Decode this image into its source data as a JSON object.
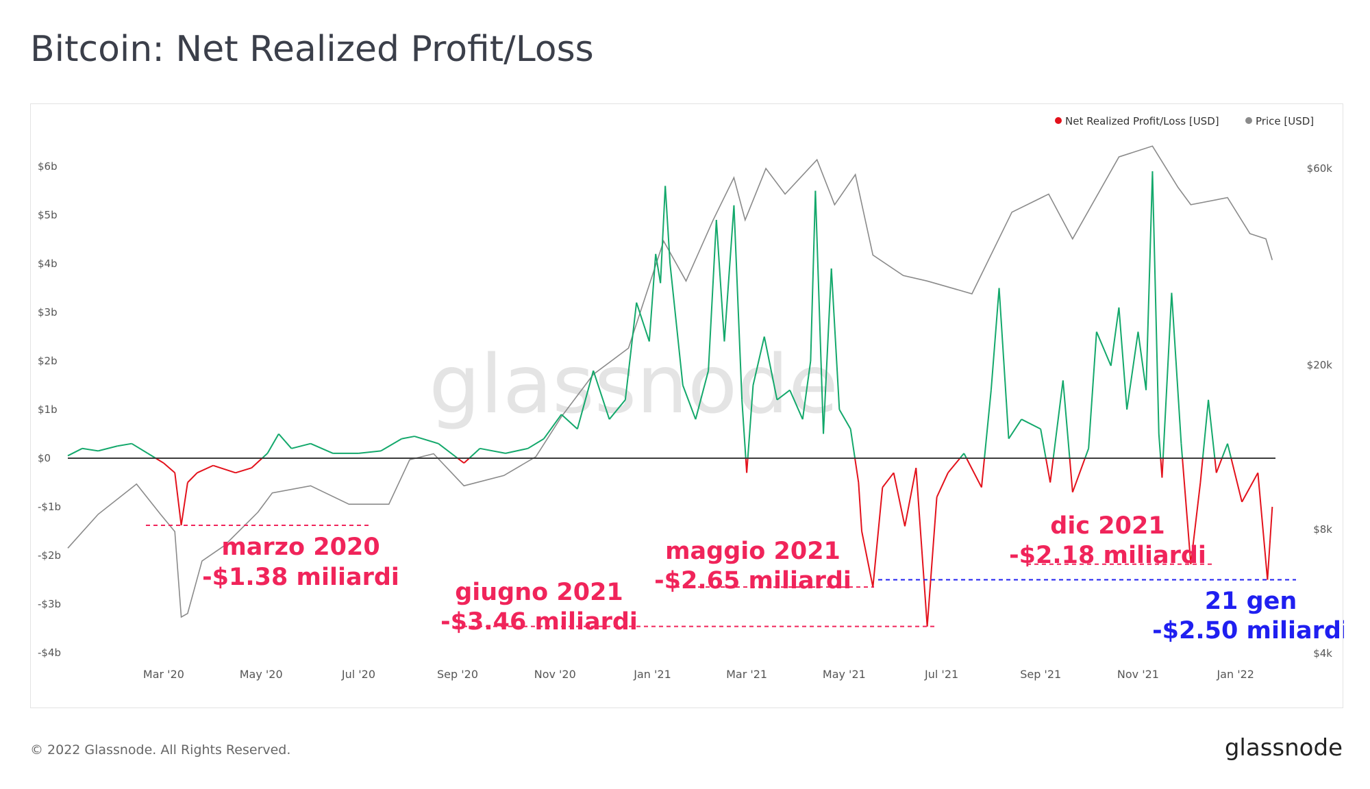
{
  "title": "Bitcoin: Net Realized Profit/Loss",
  "footer": {
    "copyright": "© 2022 Glassnode. All Rights Reserved.",
    "brand": "glassnode"
  },
  "watermark": "glassnode",
  "colors": {
    "profit": "#13a86b",
    "loss": "#e3111b",
    "price": "#8a8a8a",
    "callout_red": "#f0245a",
    "callout_blue": "#1f1ff0",
    "zero_line": "#3a3a3a"
  },
  "chart_data": {
    "type": "line",
    "title": "Bitcoin: Net Realized Profit/Loss",
    "legend": {
      "placement": "top-right",
      "entries": [
        {
          "name": "Net Realized Profit/Loss [USD]",
          "color": "#e3111b"
        },
        {
          "name": "Price [USD]",
          "color": "#8a8a8a"
        }
      ]
    },
    "x_range": [
      "2020-01-01",
      "2022-01-26"
    ],
    "x_ticks": [
      {
        "label": "Mar '20",
        "date": "2020-03-01"
      },
      {
        "label": "May '20",
        "date": "2020-05-01"
      },
      {
        "label": "Jul '20",
        "date": "2020-07-01"
      },
      {
        "label": "Sep '20",
        "date": "2020-09-01"
      },
      {
        "label": "Nov '20",
        "date": "2020-11-01"
      },
      {
        "label": "Jan '21",
        "date": "2021-01-01"
      },
      {
        "label": "Mar '21",
        "date": "2021-03-01"
      },
      {
        "label": "May '21",
        "date": "2021-05-01"
      },
      {
        "label": "Jul '21",
        "date": "2021-07-01"
      },
      {
        "label": "Sep '21",
        "date": "2021-09-01"
      },
      {
        "label": "Nov '21",
        "date": "2021-11-01"
      },
      {
        "label": "Jan '22",
        "date": "2022-01-01"
      }
    ],
    "y_left": {
      "unit": "USD billions",
      "range": [
        -4,
        6.5
      ],
      "ticks": [
        {
          "label": "$6b",
          "value": 6
        },
        {
          "label": "$5b",
          "value": 5
        },
        {
          "label": "$4b",
          "value": 4
        },
        {
          "label": "$3b",
          "value": 3
        },
        {
          "label": "$2b",
          "value": 2
        },
        {
          "label": "$1b",
          "value": 1
        },
        {
          "label": "$0",
          "value": 0
        },
        {
          "label": "-$1b",
          "value": -1
        },
        {
          "label": "-$2b",
          "value": -2
        },
        {
          "label": "-$3b",
          "value": -3
        },
        {
          "label": "-$4b",
          "value": -4
        }
      ]
    },
    "y_right": {
      "unit": "USD",
      "scale": "log",
      "range": [
        4000,
        80000
      ],
      "ticks": [
        {
          "label": "$60k",
          "value": 60000
        },
        {
          "label": "$20k",
          "value": 20000
        },
        {
          "label": "$8k",
          "value": 8000
        },
        {
          "label": "$4k",
          "value": 4000
        }
      ]
    },
    "series": [
      {
        "name": "Net Realized Profit/Loss [USD]",
        "unit": "USD billions",
        "points": [
          [
            "2020-01-01",
            0.05
          ],
          [
            "2020-01-10",
            0.2
          ],
          [
            "2020-01-20",
            0.15
          ],
          [
            "2020-02-01",
            0.25
          ],
          [
            "2020-02-10",
            0.3
          ],
          [
            "2020-02-20",
            0.1
          ],
          [
            "2020-03-01",
            -0.1
          ],
          [
            "2020-03-08",
            -0.3
          ],
          [
            "2020-03-12",
            -1.38
          ],
          [
            "2020-03-16",
            -0.5
          ],
          [
            "2020-03-22",
            -0.3
          ],
          [
            "2020-04-01",
            -0.15
          ],
          [
            "2020-04-15",
            -0.3
          ],
          [
            "2020-04-25",
            -0.2
          ],
          [
            "2020-05-05",
            0.1
          ],
          [
            "2020-05-12",
            0.5
          ],
          [
            "2020-05-20",
            0.2
          ],
          [
            "2020-06-01",
            0.3
          ],
          [
            "2020-06-15",
            0.1
          ],
          [
            "2020-07-01",
            0.1
          ],
          [
            "2020-07-15",
            0.15
          ],
          [
            "2020-07-28",
            0.4
          ],
          [
            "2020-08-05",
            0.45
          ],
          [
            "2020-08-20",
            0.3
          ],
          [
            "2020-09-05",
            -0.1
          ],
          [
            "2020-09-15",
            0.2
          ],
          [
            "2020-10-01",
            0.1
          ],
          [
            "2020-10-15",
            0.2
          ],
          [
            "2020-10-25",
            0.4
          ],
          [
            "2020-11-05",
            0.9
          ],
          [
            "2020-11-15",
            0.6
          ],
          [
            "2020-11-25",
            1.8
          ],
          [
            "2020-12-05",
            0.8
          ],
          [
            "2020-12-15",
            1.2
          ],
          [
            "2020-12-22",
            3.2
          ],
          [
            "2020-12-30",
            2.4
          ],
          [
            "2021-01-03",
            4.2
          ],
          [
            "2021-01-06",
            3.6
          ],
          [
            "2021-01-09",
            5.6
          ],
          [
            "2021-01-12",
            4.0
          ],
          [
            "2021-01-20",
            1.5
          ],
          [
            "2021-01-28",
            0.8
          ],
          [
            "2021-02-05",
            1.8
          ],
          [
            "2021-02-10",
            4.9
          ],
          [
            "2021-02-15",
            2.4
          ],
          [
            "2021-02-21",
            5.2
          ],
          [
            "2021-02-26",
            1.2
          ],
          [
            "2021-03-01",
            -0.3
          ],
          [
            "2021-03-05",
            1.5
          ],
          [
            "2021-03-12",
            2.5
          ],
          [
            "2021-03-20",
            1.2
          ],
          [
            "2021-03-28",
            1.4
          ],
          [
            "2021-04-05",
            0.8
          ],
          [
            "2021-04-10",
            2.0
          ],
          [
            "2021-04-13",
            5.5
          ],
          [
            "2021-04-18",
            0.5
          ],
          [
            "2021-04-23",
            3.9
          ],
          [
            "2021-04-28",
            1.0
          ],
          [
            "2021-05-05",
            0.6
          ],
          [
            "2021-05-10",
            -0.5
          ],
          [
            "2021-05-12",
            -1.5
          ],
          [
            "2021-05-19",
            -2.65
          ],
          [
            "2021-05-25",
            -0.6
          ],
          [
            "2021-06-01",
            -0.3
          ],
          [
            "2021-06-08",
            -1.4
          ],
          [
            "2021-06-15",
            -0.2
          ],
          [
            "2021-06-22",
            -3.46
          ],
          [
            "2021-06-28",
            -0.8
          ],
          [
            "2021-07-05",
            -0.3
          ],
          [
            "2021-07-15",
            0.1
          ],
          [
            "2021-07-26",
            -0.6
          ],
          [
            "2021-08-01",
            1.4
          ],
          [
            "2021-08-06",
            3.5
          ],
          [
            "2021-08-12",
            0.4
          ],
          [
            "2021-08-20",
            0.8
          ],
          [
            "2021-09-01",
            0.6
          ],
          [
            "2021-09-07",
            -0.5
          ],
          [
            "2021-09-15",
            1.6
          ],
          [
            "2021-09-21",
            -0.7
          ],
          [
            "2021-10-01",
            0.2
          ],
          [
            "2021-10-06",
            2.6
          ],
          [
            "2021-10-15",
            1.9
          ],
          [
            "2021-10-20",
            3.1
          ],
          [
            "2021-10-25",
            1.0
          ],
          [
            "2021-11-01",
            2.6
          ],
          [
            "2021-11-06",
            1.4
          ],
          [
            "2021-11-10",
            5.9
          ],
          [
            "2021-11-14",
            0.5
          ],
          [
            "2021-11-16",
            -0.4
          ],
          [
            "2021-11-22",
            3.4
          ],
          [
            "2021-11-28",
            0.3
          ],
          [
            "2021-12-04",
            -2.18
          ],
          [
            "2021-12-10",
            -0.5
          ],
          [
            "2021-12-15",
            1.2
          ],
          [
            "2021-12-20",
            -0.3
          ],
          [
            "2021-12-27",
            0.3
          ],
          [
            "2022-01-05",
            -0.9
          ],
          [
            "2022-01-10",
            -0.6
          ],
          [
            "2022-01-15",
            -0.3
          ],
          [
            "2022-01-21",
            -2.5
          ],
          [
            "2022-01-24",
            -1.0
          ]
        ]
      },
      {
        "name": "Price [USD]",
        "unit": "USD",
        "points": [
          [
            "2020-01-01",
            7200
          ],
          [
            "2020-01-20",
            8700
          ],
          [
            "2020-02-13",
            10300
          ],
          [
            "2020-02-28",
            8700
          ],
          [
            "2020-03-08",
            7900
          ],
          [
            "2020-03-12",
            4900
          ],
          [
            "2020-03-16",
            5000
          ],
          [
            "2020-03-25",
            6700
          ],
          [
            "2020-04-08",
            7300
          ],
          [
            "2020-04-29",
            8800
          ],
          [
            "2020-05-08",
            9800
          ],
          [
            "2020-06-01",
            10200
          ],
          [
            "2020-06-25",
            9200
          ],
          [
            "2020-07-20",
            9200
          ],
          [
            "2020-08-02",
            11800
          ],
          [
            "2020-08-17",
            12200
          ],
          [
            "2020-09-05",
            10200
          ],
          [
            "2020-09-30",
            10800
          ],
          [
            "2020-10-20",
            12000
          ],
          [
            "2020-11-05",
            15000
          ],
          [
            "2020-11-25",
            19000
          ],
          [
            "2020-12-17",
            22000
          ],
          [
            "2021-01-08",
            40000
          ],
          [
            "2021-01-22",
            32000
          ],
          [
            "2021-02-08",
            45000
          ],
          [
            "2021-02-21",
            57000
          ],
          [
            "2021-02-28",
            45000
          ],
          [
            "2021-03-13",
            60000
          ],
          [
            "2021-03-25",
            52000
          ],
          [
            "2021-04-14",
            63000
          ],
          [
            "2021-04-25",
            49000
          ],
          [
            "2021-05-08",
            58000
          ],
          [
            "2021-05-19",
            37000
          ],
          [
            "2021-06-07",
            33000
          ],
          [
            "2021-06-22",
            32000
          ],
          [
            "2021-07-20",
            29800
          ],
          [
            "2021-08-14",
            47000
          ],
          [
            "2021-09-06",
            52000
          ],
          [
            "2021-09-21",
            40500
          ],
          [
            "2021-10-20",
            64000
          ],
          [
            "2021-11-10",
            68000
          ],
          [
            "2021-11-26",
            54000
          ],
          [
            "2021-12-04",
            49000
          ],
          [
            "2021-12-27",
            51000
          ],
          [
            "2022-01-10",
            41700
          ],
          [
            "2022-01-20",
            40500
          ],
          [
            "2022-01-24",
            36000
          ]
        ]
      }
    ],
    "annotations": [
      {
        "date_label": "marzo 2020",
        "value_label": "-$1.38 miliardi",
        "value": -1.38,
        "color": "#f0245a"
      },
      {
        "date_label": "giugno 2021",
        "value_label": "-$3.46 miliardi",
        "value": -3.46,
        "color": "#f0245a"
      },
      {
        "date_label": "maggio 2021",
        "value_label": "-$2.65 miliardi",
        "value": -2.65,
        "color": "#f0245a"
      },
      {
        "date_label": "dic 2021",
        "value_label": "-$2.18 miliardi",
        "value": -2.18,
        "color": "#f0245a"
      },
      {
        "date_label": "21 gen",
        "value_label": "-$2.50 miliardi",
        "value": -2.5,
        "color": "#1f1ff0"
      }
    ]
  }
}
